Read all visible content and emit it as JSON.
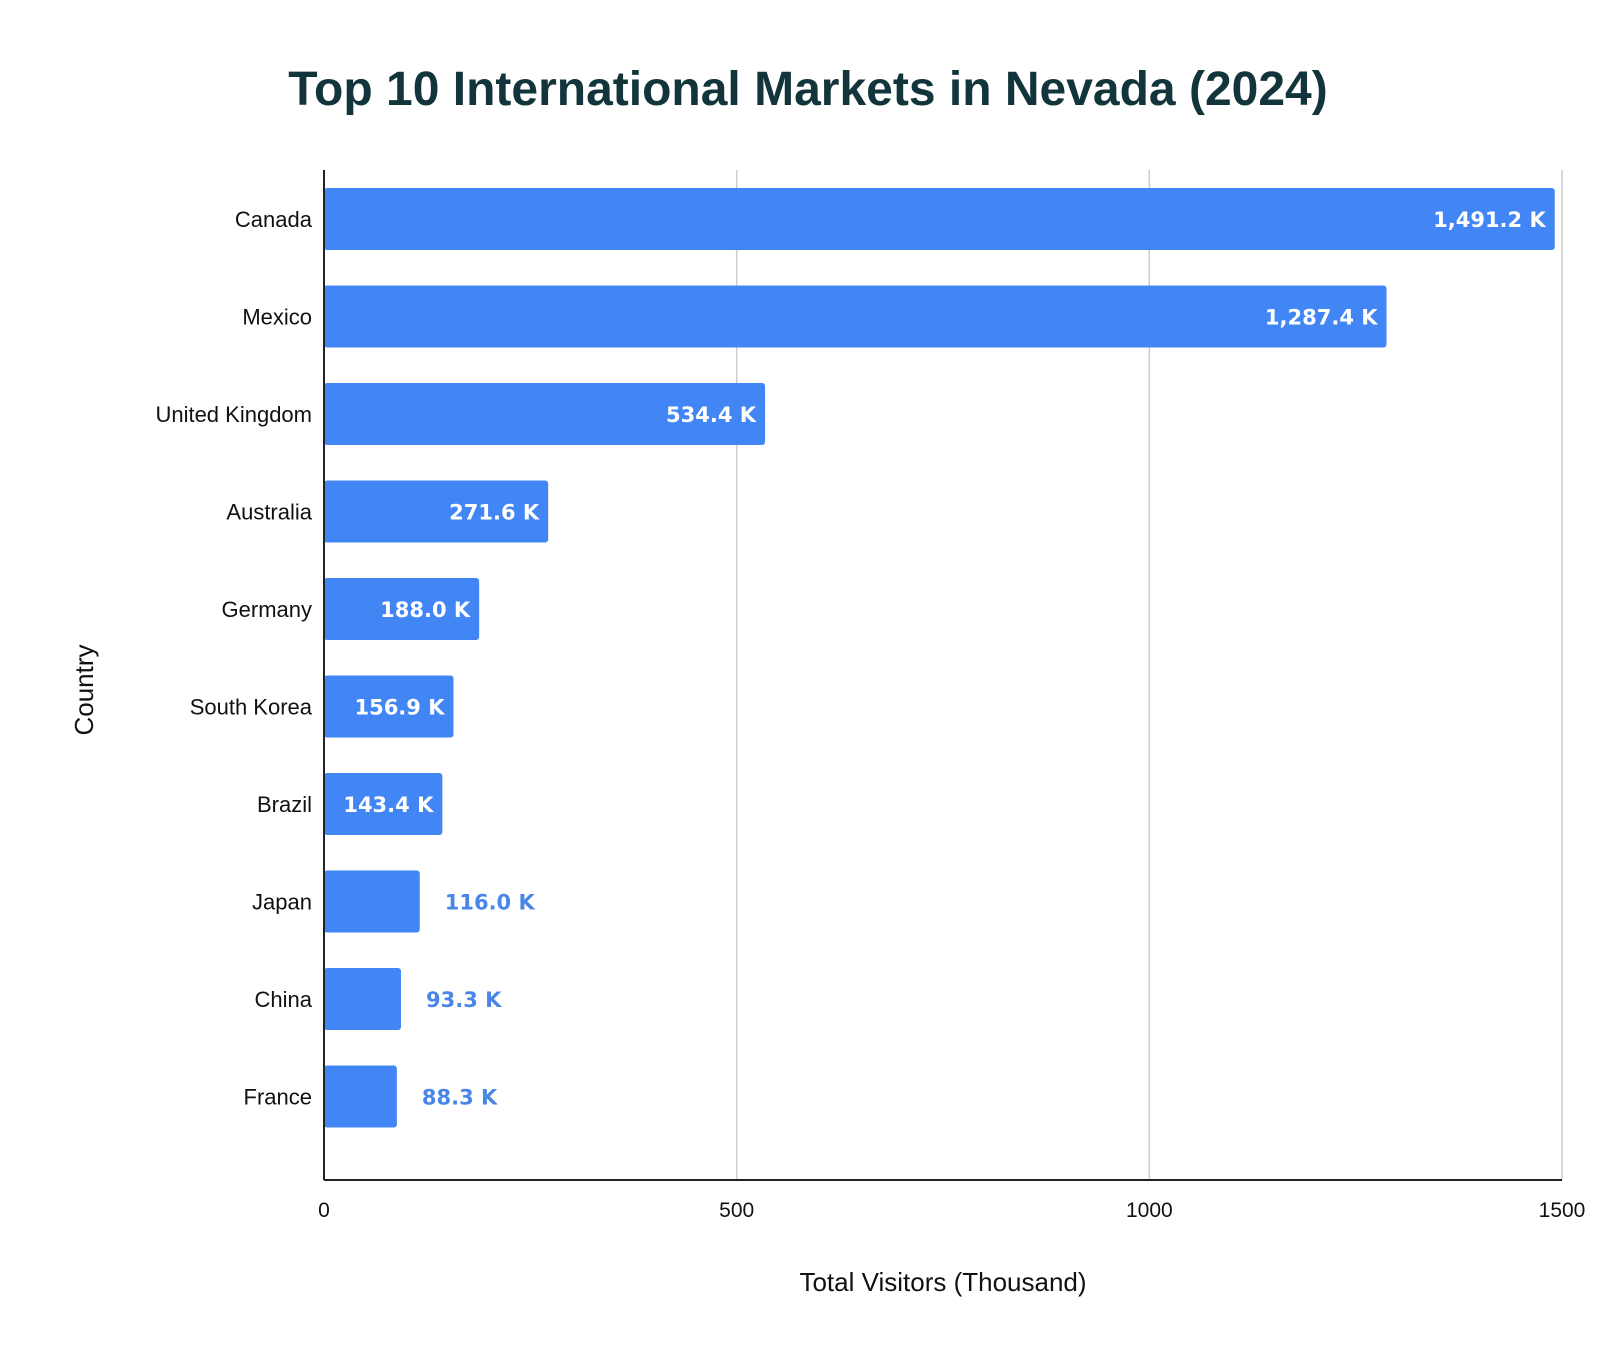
{
  "chart_data": {
    "type": "bar",
    "orientation": "horizontal",
    "title": "Top 10 International Markets in Nevada (2024)",
    "xlabel": "Total Visitors (Thousand)",
    "ylabel": "Country",
    "xlim": [
      0,
      1500
    ],
    "xticks": [
      0,
      500,
      1000,
      1500
    ],
    "xtick_labels": [
      "0",
      "500",
      "1000",
      "1500"
    ],
    "grid": true,
    "categories": [
      "Canada",
      "Mexico",
      "United Kingdom",
      "Australia",
      "Germany",
      "South Korea",
      "Brazil",
      "Japan",
      "China",
      "France"
    ],
    "values": [
      1491.2,
      1287.4,
      534.4,
      271.6,
      188.0,
      156.9,
      143.4,
      116.0,
      93.3,
      88.3
    ],
    "data_labels": [
      "1,491.2 K",
      "1,287.4 K",
      "534.4 K",
      "271.6 K",
      "188.0 K",
      "156.9 K",
      "143.4 K",
      "116.0 K",
      "93.3 K",
      "88.3 K"
    ]
  },
  "colors": {
    "bar": "#4285f4",
    "title": "#12343b",
    "grid": "#cccccc",
    "axis": "#222222",
    "label_inside": "#ffffff",
    "label_outside": "#4a86e8"
  }
}
